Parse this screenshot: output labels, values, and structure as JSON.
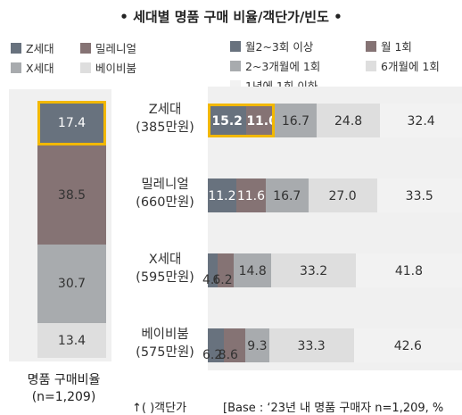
{
  "title": "• 세대별 명품 구매 비율/객단가/빈도 •",
  "colors": {
    "z": "#68727e",
    "millennial": "#857374",
    "x": "#a8abae",
    "babyboom": "#dedede",
    "highlight": "#f2b800",
    "bg_panel": "#f0f0f0"
  },
  "left_legend": [
    {
      "label": "Z세대",
      "color": "#68727e"
    },
    {
      "label": "밀레니얼",
      "color": "#857374"
    },
    {
      "label": "X세대",
      "color": "#a8abae"
    },
    {
      "label": "베이비붐",
      "color": "#dedede"
    }
  ],
  "right_legend": [
    {
      "label": "월2~3회 이상",
      "color": "#68727e"
    },
    {
      "label": "월 1회",
      "color": "#857374"
    },
    {
      "label": "2~3개월에 1회",
      "color": "#a8abae"
    },
    {
      "label": "6개월에 1회",
      "color": "#dedede"
    },
    {
      "label": "1년에 1회 이하",
      "color": "#f2f2f2"
    }
  ],
  "left_caption": {
    "line1": "명품 구매비율",
    "line2": "(n=1,209)"
  },
  "footer": {
    "price_note": "↑(   )객단가",
    "base": "[Base : ‘23년 내 명품 구매자 n=1,209, %"
  },
  "chart_data": [
    {
      "type": "bar",
      "orientation": "vertical-stacked",
      "title": "",
      "xlabel": "명품 구매비율",
      "categories": [
        "명품 구매비율 (n=1,209)"
      ],
      "series": [
        {
          "name": "Z세대",
          "values": [
            17.4
          ],
          "highlight": true
        },
        {
          "name": "밀레니얼",
          "values": [
            38.5
          ]
        },
        {
          "name": "X세대",
          "values": [
            30.7
          ]
        },
        {
          "name": "베이비붐",
          "values": [
            13.4
          ]
        }
      ],
      "ylim": [
        0,
        100
      ]
    },
    {
      "type": "bar",
      "orientation": "horizontal-stacked",
      "title": "",
      "categories": [
        "Z세대",
        "밀레니얼",
        "X세대",
        "베이비붐"
      ],
      "category_notes": [
        "(385만원)",
        "(660만원)",
        "(595만원)",
        "(575만원)"
      ],
      "series": [
        {
          "name": "월2~3회 이상",
          "values": [
            15.2,
            11.2,
            4.0,
            6.2
          ]
        },
        {
          "name": "월 1회",
          "values": [
            11.0,
            11.6,
            6.2,
            8.6
          ]
        },
        {
          "name": "2~3개월에 1회",
          "values": [
            16.7,
            16.7,
            14.8,
            9.3
          ]
        },
        {
          "name": "6개월에 1회",
          "values": [
            24.8,
            27.0,
            33.2,
            33.3
          ]
        },
        {
          "name": "1년에 1회 이하",
          "values": [
            32.4,
            33.5,
            41.8,
            42.6
          ]
        }
      ],
      "highlight": {
        "category": 0,
        "series": [
          0,
          1
        ]
      },
      "xlim": [
        0,
        100
      ]
    }
  ]
}
